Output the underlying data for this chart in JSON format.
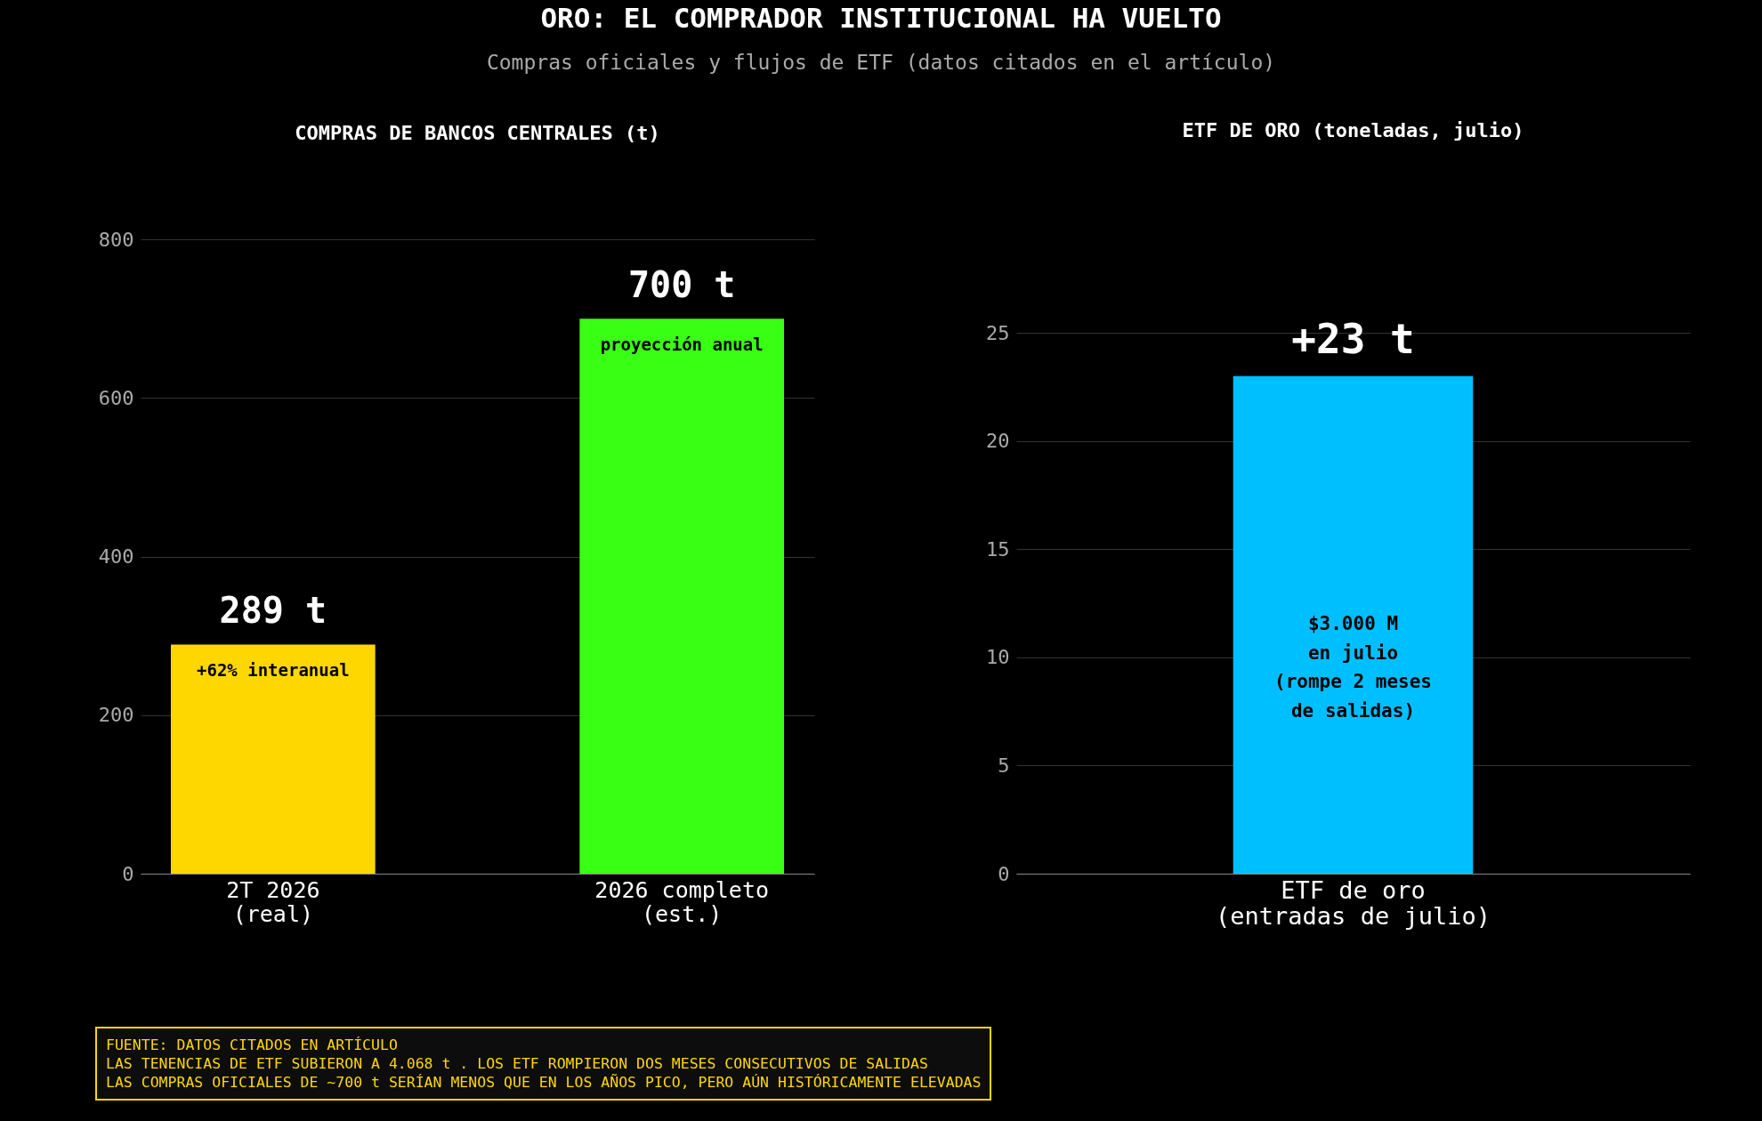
{
  "chart_data": [
    {
      "type": "other",
      "title": "ORO: EL COMPRADOR INSTITUCIONAL HA VUELTO",
      "subtitle": "Compras oficiales y flujos de ETF (datos citados en el artículo)",
      "annotations": [
        "FUENTE: DATOS CITADOS EN ARTÍCULO",
        "LAS TENENCIAS DE ETF SUBIERON A 4.068 t . LOS ETF ROMPIERON DOS MESES CONSECUTIVOS DE SALIDAS",
        "LAS COMPRAS OFICIALES DE ~700 t SERÍAN MENOS QUE EN LOS AÑOS PICO, PERO AÚN HISTÓRICAMENTE ELEVADAS"
      ]
    },
    {
      "type": "bar",
      "title": "COMPRAS DE BANCOS CENTRALES (t)",
      "categories": [
        "2T 2026\n(real)",
        "2026 completo\n(est.)"
      ],
      "values": [
        289,
        700
      ],
      "colors": [
        "#ffd700",
        "#39ff14"
      ],
      "value_labels": [
        "289 t",
        "700 t"
      ],
      "annotations": [
        "+62% interanual",
        "proyección anual"
      ],
      "ylim": [
        0,
        800
      ],
      "yticks": [
        0,
        200,
        400,
        600,
        800
      ],
      "grid": "y"
    },
    {
      "type": "bar",
      "title": "ETF DE ORO (toneladas, julio)",
      "categories": [
        "ETF de oro\n(entradas de julio)"
      ],
      "values": [
        23
      ],
      "colors": [
        "#00bfff"
      ],
      "value_labels": [
        "+23 t"
      ],
      "annotations": [
        "$3.000 M\nen julio\n(rompe 2 meses\nde salidas)"
      ],
      "ylim": [
        0,
        25
      ],
      "yticks": [
        0,
        5,
        10,
        15,
        20,
        25
      ],
      "grid": "y"
    }
  ]
}
